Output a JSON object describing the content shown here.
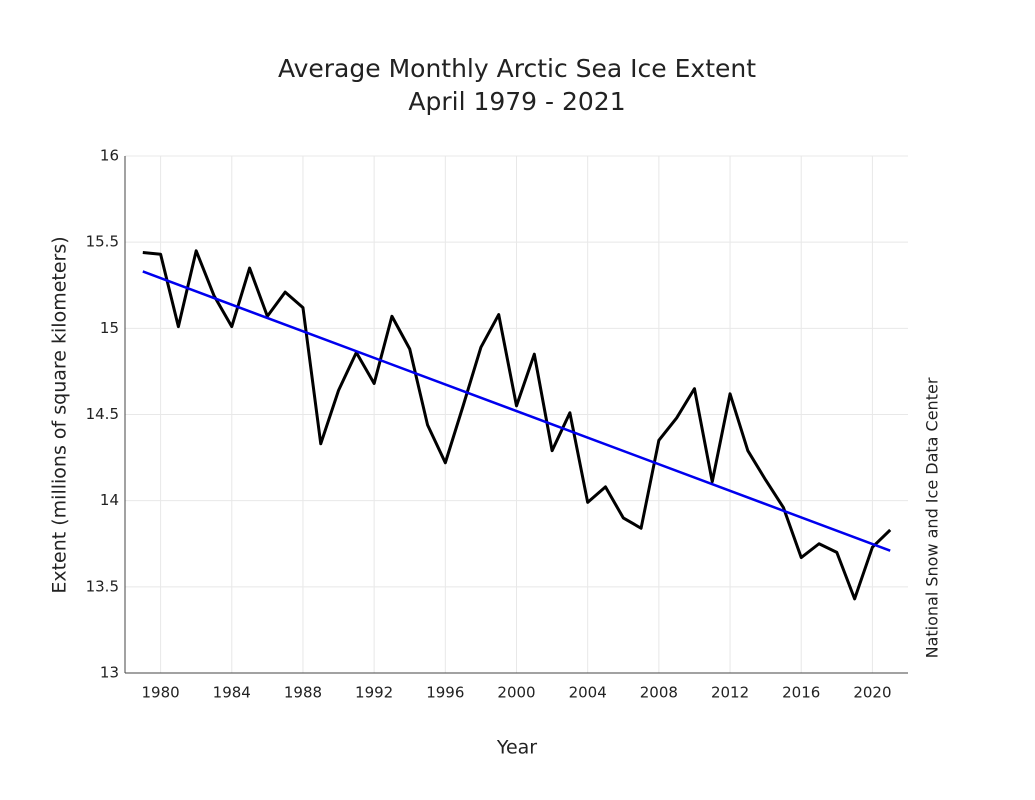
{
  "chart_data": {
    "type": "line",
    "title": "Average Monthly Arctic Sea Ice Extent",
    "subtitle": "April 1979 - 2021",
    "x_label": "Year",
    "y_label": "Extent (millions of square kilometers)",
    "source": "National Snow and Ice Data Center",
    "x": [
      1979,
      1980,
      1981,
      1982,
      1983,
      1984,
      1985,
      1986,
      1987,
      1988,
      1989,
      1990,
      1991,
      1992,
      1993,
      1994,
      1995,
      1996,
      1997,
      1998,
      1999,
      2000,
      2001,
      2002,
      2003,
      2004,
      2005,
      2006,
      2007,
      2008,
      2009,
      2010,
      2011,
      2012,
      2013,
      2014,
      2015,
      2016,
      2017,
      2018,
      2019,
      2020,
      2021
    ],
    "series": [
      {
        "color": "#000000",
        "values": [
          15.44,
          15.43,
          15.01,
          15.45,
          15.19,
          15.01,
          15.35,
          15.07,
          15.21,
          15.12,
          14.33,
          14.64,
          14.86,
          14.68,
          15.07,
          14.88,
          14.44,
          14.22,
          14.55,
          14.89,
          15.08,
          14.55,
          14.85,
          14.29,
          14.51,
          13.99,
          14.08,
          13.9,
          13.84,
          14.35,
          14.48,
          14.65,
          14.11,
          14.62,
          14.29,
          14.12,
          13.96,
          13.67,
          13.75,
          13.7,
          13.43,
          13.73,
          13.83
        ]
      }
    ],
    "trend": {
      "x": [
        1979,
        2021
      ],
      "values": [
        15.33,
        13.71
      ],
      "color": "#0000ee"
    },
    "xlim": [
      1978,
      2022
    ],
    "xticks": [
      1980,
      1984,
      1988,
      1992,
      1996,
      2000,
      2004,
      2008,
      2012,
      2016,
      2020
    ],
    "ylim": [
      13,
      16
    ],
    "yticks": [
      13,
      13.5,
      14,
      14.5,
      15,
      15.5,
      16
    ],
    "grid": true
  }
}
